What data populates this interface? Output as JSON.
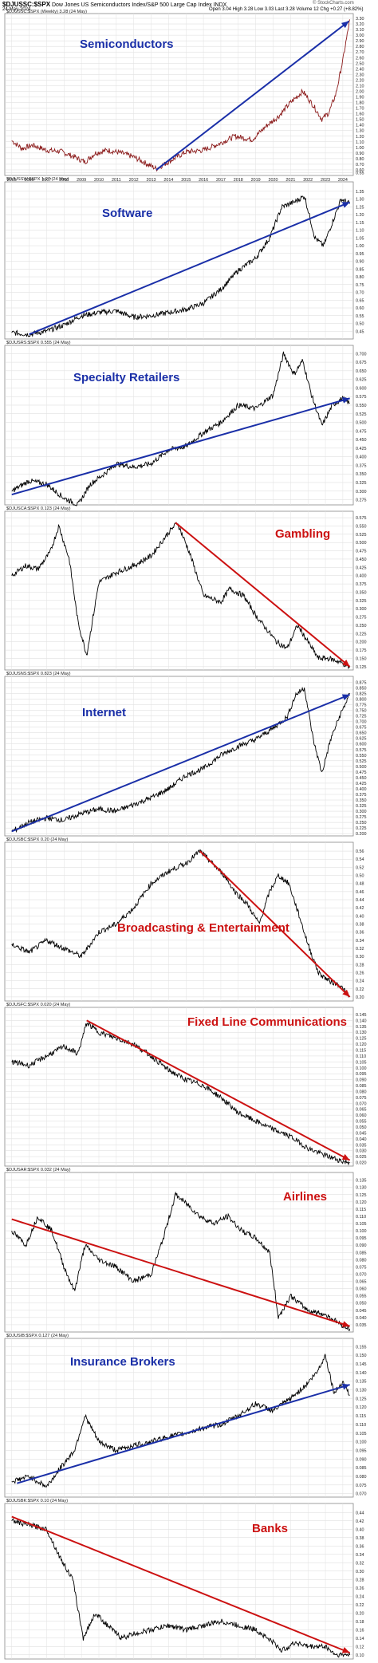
{
  "header": {
    "symbol": "$DJUSSC:$SPX",
    "description": "Dow Jones US Semiconductors Index/S&P 500 Large Cap Index",
    "exchange": "INDX",
    "date": "24-May-2024",
    "stats": "Open 3.04  High 3.28  Low 3.03  Last 3.28  Volume 12  Chg +0.27 (+8.82%)",
    "credit": "© StockCharts.com"
  },
  "chart_data": [
    {
      "type": "line",
      "id": "semis",
      "title": "Semiconductors",
      "title_color": "#1a2fa8",
      "panel_label": "$DJUSSC:$SPX (Weekly) 3.28 (24 May)",
      "line_color": "#8b1a1a",
      "x_ticks": [
        "2005",
        "2006",
        "2007",
        "2008",
        "2009",
        "2010",
        "2011",
        "2012",
        "2013",
        "2014",
        "2015",
        "2016",
        "2017",
        "2018",
        "2019",
        "2020",
        "2021",
        "2022",
        "2023",
        "2024"
      ],
      "y_ticks": [
        "3.30",
        "3.20",
        "3.10",
        "3.00",
        "2.90",
        "2.80",
        "2.70",
        "2.60",
        "2.50",
        "2.40",
        "2.30",
        "2.20",
        "2.10",
        "2.00",
        "1.90",
        "1.80",
        "1.70",
        "1.60",
        "1.50",
        "1.40",
        "1.30",
        "1.20",
        "1.10",
        "1.00",
        "0.90",
        "0.80",
        "0.70",
        "0.60",
        "0.55"
      ],
      "ylim": [
        0.5,
        3.3
      ],
      "series_x": [
        2005.0,
        2005.6,
        2006.2,
        2007.0,
        2007.8,
        2008.6,
        2009.2,
        2009.8,
        2010.5,
        2011.3,
        2012.0,
        2012.8,
        2013.3,
        2014.2,
        2015.0,
        2016.0,
        2017.0,
        2017.8,
        2018.8,
        2019.6,
        2020.3,
        2021.0,
        2021.7,
        2022.3,
        2022.8,
        2023.2,
        2023.6,
        2024.0,
        2024.4
      ],
      "series_y": [
        1.12,
        0.98,
        1.04,
        0.95,
        0.93,
        0.83,
        0.74,
        0.9,
        0.95,
        0.9,
        0.83,
        0.7,
        0.62,
        0.78,
        0.92,
        0.95,
        1.08,
        1.2,
        1.14,
        1.38,
        1.55,
        1.8,
        2.0,
        1.75,
        1.5,
        1.62,
        1.95,
        2.55,
        3.28
      ],
      "trend_color": "#1a2fa8",
      "trend": [
        [
          2013.3,
          0.6
        ],
        [
          2024.35,
          3.25
        ]
      ]
    },
    {
      "type": "line",
      "id": "software",
      "title": "Software",
      "title_color": "#1a2fa8",
      "panel_label": "$DJUSSW:$SPX 1.27 (24 May)",
      "line_color": "#000000",
      "y_ticks": [
        "1.35",
        "1.30",
        "1.25",
        "1.20",
        "1.15",
        "1.10",
        "1.05",
        "1.00",
        "0.95",
        "0.90",
        "0.85",
        "0.80",
        "0.75",
        "0.70",
        "0.65",
        "0.60",
        "0.55",
        "0.50",
        "0.45"
      ],
      "ylim": [
        0.4,
        1.38
      ],
      "series_x": [
        2005.0,
        2006.0,
        2007.0,
        2008.0,
        2009.0,
        2010.0,
        2011.0,
        2012.0,
        2013.0,
        2014.0,
        2015.0,
        2016.0,
        2017.0,
        2018.0,
        2019.0,
        2019.8,
        2020.5,
        2021.2,
        2021.8,
        2022.4,
        2022.9,
        2023.4,
        2023.9,
        2024.4
      ],
      "series_y": [
        0.44,
        0.43,
        0.45,
        0.49,
        0.55,
        0.57,
        0.58,
        0.54,
        0.55,
        0.57,
        0.59,
        0.63,
        0.72,
        0.84,
        0.92,
        1.05,
        1.25,
        1.28,
        1.32,
        1.05,
        1.0,
        1.15,
        1.3,
        1.27
      ],
      "trend_color": "#1a2fa8",
      "trend": [
        [
          2006.0,
          0.43
        ],
        [
          2024.4,
          1.28
        ]
      ]
    },
    {
      "type": "line",
      "id": "specialty",
      "title": "Specialty Retailers",
      "title_color": "#1a2fa8",
      "panel_label": "$DJUSRS:$SPX 0.555 (24 May)",
      "line_color": "#000000",
      "y_ticks": [
        "0.700",
        "0.675",
        "0.650",
        "0.625",
        "0.600",
        "0.575",
        "0.550",
        "0.525",
        "0.500",
        "0.475",
        "0.450",
        "0.425",
        "0.400",
        "0.375",
        "0.350",
        "0.325",
        "0.300",
        "0.275"
      ],
      "ylim": [
        0.26,
        0.71
      ],
      "series_x": [
        2005.0,
        2006.0,
        2007.0,
        2008.0,
        2008.8,
        2009.5,
        2010.3,
        2011.0,
        2012.0,
        2013.0,
        2014.0,
        2015.0,
        2016.0,
        2017.0,
        2018.0,
        2019.0,
        2020.0,
        2020.6,
        2021.2,
        2021.7,
        2022.2,
        2022.8,
        2023.4,
        2024.0,
        2024.4
      ],
      "series_y": [
        0.3,
        0.33,
        0.32,
        0.28,
        0.26,
        0.32,
        0.35,
        0.38,
        0.37,
        0.38,
        0.42,
        0.43,
        0.47,
        0.5,
        0.55,
        0.54,
        0.58,
        0.7,
        0.64,
        0.68,
        0.58,
        0.49,
        0.55,
        0.57,
        0.555
      ],
      "trend_color": "#1a2fa8",
      "trend": [
        [
          2005.0,
          0.29
        ],
        [
          2024.4,
          0.57
        ]
      ]
    },
    {
      "type": "line",
      "id": "gambling",
      "title": "Gambling",
      "title_color": "#cc1111",
      "panel_label": "$DJUSCA:$SPX 0.123 (24 May)",
      "line_color": "#000000",
      "y_ticks": [
        "0.575",
        "0.550",
        "0.525",
        "0.500",
        "0.475",
        "0.450",
        "0.425",
        "0.400",
        "0.375",
        "0.350",
        "0.325",
        "0.300",
        "0.275",
        "0.250",
        "0.225",
        "0.200",
        "0.175",
        "0.150",
        "0.125"
      ],
      "ylim": [
        0.115,
        0.58
      ],
      "series_x": [
        2005.0,
        2005.8,
        2006.5,
        2007.2,
        2007.7,
        2008.3,
        2008.8,
        2009.3,
        2010.0,
        2011.0,
        2012.0,
        2013.0,
        2014.0,
        2014.5,
        2015.2,
        2016.0,
        2017.0,
        2017.5,
        2018.3,
        2019.0,
        2019.6,
        2020.2,
        2020.8,
        2021.4,
        2022.0,
        2022.6,
        2023.2,
        2023.8,
        2024.4
      ],
      "series_y": [
        0.4,
        0.43,
        0.42,
        0.47,
        0.55,
        0.45,
        0.26,
        0.16,
        0.38,
        0.41,
        0.43,
        0.46,
        0.53,
        0.56,
        0.47,
        0.34,
        0.32,
        0.36,
        0.34,
        0.28,
        0.24,
        0.2,
        0.18,
        0.25,
        0.2,
        0.15,
        0.15,
        0.14,
        0.123
      ],
      "trend_color": "#cc1111",
      "trend": [
        [
          2014.4,
          0.56
        ],
        [
          2024.4,
          0.125
        ]
      ]
    },
    {
      "type": "line",
      "id": "internet",
      "title": "Internet",
      "title_color": "#1a2fa8",
      "panel_label": "$DJUSNS:$SPX 0.823 (24 May)",
      "line_color": "#000000",
      "y_ticks": [
        "0.875",
        "0.850",
        "0.825",
        "0.800",
        "0.775",
        "0.750",
        "0.725",
        "0.700",
        "0.675",
        "0.650",
        "0.625",
        "0.600",
        "0.575",
        "0.550",
        "0.525",
        "0.500",
        "0.475",
        "0.450",
        "0.425",
        "0.400",
        "0.375",
        "0.350",
        "0.325",
        "0.300",
        "0.275",
        "0.250",
        "0.225",
        "0.200"
      ],
      "ylim": [
        0.19,
        0.88
      ],
      "series_x": [
        2005.0,
        2006.0,
        2007.0,
        2008.0,
        2009.0,
        2010.0,
        2011.0,
        2012.0,
        2013.0,
        2014.0,
        2015.0,
        2016.0,
        2017.0,
        2018.0,
        2019.0,
        2020.0,
        2020.8,
        2021.3,
        2021.8,
        2022.3,
        2022.8,
        2023.3,
        2023.8,
        2024.4
      ],
      "series_y": [
        0.21,
        0.25,
        0.27,
        0.26,
        0.29,
        0.31,
        0.3,
        0.33,
        0.36,
        0.4,
        0.46,
        0.49,
        0.55,
        0.59,
        0.62,
        0.67,
        0.72,
        0.82,
        0.85,
        0.62,
        0.47,
        0.62,
        0.72,
        0.823
      ],
      "trend_color": "#1a2fa8",
      "trend": [
        [
          2005.0,
          0.21
        ],
        [
          2024.4,
          0.82
        ]
      ]
    },
    {
      "type": "line",
      "id": "broadcasting",
      "title": "Broadcasting & Entertainment",
      "title_color": "#cc1111",
      "panel_label": "$DJUSBC:$SPX 0.20 (24 May)",
      "line_color": "#000000",
      "y_ticks": [
        "0.56",
        "0.54",
        "0.52",
        "0.50",
        "0.48",
        "0.46",
        "0.44",
        "0.42",
        "0.40",
        "0.38",
        "0.36",
        "0.34",
        "0.32",
        "0.30",
        "0.28",
        "0.26",
        "0.24",
        "0.22",
        "0.20"
      ],
      "ylim": [
        0.19,
        0.57
      ],
      "series_x": [
        2005.0,
        2006.0,
        2007.0,
        2008.0,
        2009.0,
        2010.0,
        2011.0,
        2012.0,
        2013.0,
        2014.0,
        2015.0,
        2015.8,
        2016.5,
        2017.2,
        2017.8,
        2018.5,
        2019.2,
        2019.8,
        2020.3,
        2020.9,
        2021.5,
        2022.0,
        2022.6,
        2023.2,
        2023.8,
        2024.4
      ],
      "series_y": [
        0.33,
        0.31,
        0.34,
        0.32,
        0.3,
        0.36,
        0.38,
        0.42,
        0.48,
        0.51,
        0.53,
        0.56,
        0.53,
        0.5,
        0.46,
        0.43,
        0.38,
        0.46,
        0.5,
        0.48,
        0.4,
        0.33,
        0.26,
        0.24,
        0.23,
        0.2
      ],
      "trend_color": "#cc1111",
      "trend": [
        [
          2015.8,
          0.56
        ],
        [
          2024.4,
          0.2
        ]
      ]
    },
    {
      "type": "line",
      "id": "fixedline",
      "title": "Fixed Line Communications",
      "title_color": "#cc1111",
      "panel_label": "$DJUSFC:$SPX 0.020 (24 May)",
      "line_color": "#000000",
      "y_ticks": [
        "0.145",
        "0.140",
        "0.135",
        "0.130",
        "0.125",
        "0.120",
        "0.115",
        "0.110",
        "0.105",
        "0.100",
        "0.095",
        "0.090",
        "0.085",
        "0.080",
        "0.075",
        "0.070",
        "0.065",
        "0.060",
        "0.055",
        "0.050",
        "0.045",
        "0.040",
        "0.035",
        "0.030",
        "0.025",
        "0.020"
      ],
      "ylim": [
        0.017,
        0.147
      ],
      "series_x": [
        2005.0,
        2006.0,
        2007.0,
        2008.0,
        2008.8,
        2009.3,
        2010.0,
        2011.0,
        2012.0,
        2013.0,
        2014.0,
        2015.0,
        2016.0,
        2017.0,
        2018.0,
        2019.0,
        2020.0,
        2021.0,
        2022.0,
        2023.0,
        2024.0,
        2024.4
      ],
      "series_y": [
        0.105,
        0.102,
        0.11,
        0.118,
        0.112,
        0.138,
        0.13,
        0.125,
        0.12,
        0.11,
        0.098,
        0.09,
        0.085,
        0.075,
        0.062,
        0.055,
        0.048,
        0.042,
        0.032,
        0.026,
        0.021,
        0.02
      ],
      "trend_color": "#cc1111",
      "trend": [
        [
          2009.3,
          0.14
        ],
        [
          2024.4,
          0.022
        ]
      ]
    },
    {
      "type": "line",
      "id": "airlines",
      "title": "Airlines",
      "title_color": "#cc1111",
      "panel_label": "$DJUSAR:$SPX 0.032 (24 May)",
      "line_color": "#000000",
      "y_ticks": [
        "0.135",
        "0.130",
        "0.125",
        "0.120",
        "0.115",
        "0.110",
        "0.105",
        "0.100",
        "0.095",
        "0.090",
        "0.085",
        "0.080",
        "0.075",
        "0.070",
        "0.065",
        "0.060",
        "0.055",
        "0.050",
        "0.045",
        "0.040",
        "0.035"
      ],
      "ylim": [
        0.03,
        0.137
      ],
      "series_x": [
        2005.0,
        2005.8,
        2006.5,
        2007.3,
        2008.0,
        2008.6,
        2009.2,
        2010.0,
        2011.0,
        2012.0,
        2013.0,
        2013.7,
        2014.4,
        2015.1,
        2015.8,
        2016.6,
        2017.4,
        2018.2,
        2019.0,
        2019.8,
        2020.3,
        2021.0,
        2022.0,
        2023.0,
        2023.8,
        2024.4
      ],
      "series_y": [
        0.1,
        0.09,
        0.11,
        0.1,
        0.075,
        0.058,
        0.09,
        0.08,
        0.075,
        0.065,
        0.07,
        0.095,
        0.125,
        0.118,
        0.11,
        0.105,
        0.11,
        0.1,
        0.095,
        0.085,
        0.04,
        0.055,
        0.045,
        0.042,
        0.036,
        0.032
      ],
      "trend_color": "#cc1111",
      "trend": [
        [
          2005.0,
          0.108
        ],
        [
          2024.4,
          0.034
        ]
      ]
    },
    {
      "type": "line",
      "id": "insurance",
      "title": "Insurance Brokers",
      "title_color": "#1a2fa8",
      "panel_label": "$DJUSIB:$SPX 0.127 (24 May)",
      "line_color": "#000000",
      "y_ticks": [
        "0.155",
        "0.150",
        "0.145",
        "0.140",
        "0.135",
        "0.130",
        "0.125",
        "0.120",
        "0.115",
        "0.110",
        "0.105",
        "0.100",
        "0.095",
        "0.090",
        "0.085",
        "0.080",
        "0.075",
        "0.070"
      ],
      "ylim": [
        0.068,
        0.157
      ],
      "series_x": [
        2005.0,
        2006.0,
        2007.0,
        2007.8,
        2008.6,
        2009.2,
        2010.0,
        2011.0,
        2012.0,
        2013.0,
        2014.0,
        2015.0,
        2016.0,
        2017.0,
        2018.0,
        2019.0,
        2020.0,
        2021.0,
        2021.8,
        2022.5,
        2023.0,
        2023.5,
        2024.0,
        2024.4
      ],
      "series_y": [
        0.077,
        0.08,
        0.074,
        0.085,
        0.095,
        0.115,
        0.1,
        0.095,
        0.098,
        0.1,
        0.103,
        0.105,
        0.108,
        0.11,
        0.115,
        0.122,
        0.118,
        0.125,
        0.132,
        0.14,
        0.15,
        0.128,
        0.135,
        0.127
      ],
      "trend_color": "#1a2fa8",
      "trend": [
        [
          2005.3,
          0.076
        ],
        [
          2024.4,
          0.133
        ]
      ]
    },
    {
      "type": "line",
      "id": "banks",
      "title": "Banks",
      "title_color": "#cc1111",
      "panel_label": "$DJUSBK:$SPX 0.10 (24 May)",
      "line_color": "#000000",
      "y_ticks": [
        "0.44",
        "0.42",
        "0.40",
        "0.38",
        "0.36",
        "0.34",
        "0.32",
        "0.30",
        "0.28",
        "0.26",
        "0.24",
        "0.22",
        "0.20",
        "0.18",
        "0.16",
        "0.14",
        "0.12",
        "0.10"
      ],
      "ylim": [
        0.09,
        0.45
      ],
      "series_x": [
        2005.0,
        2006.0,
        2007.0,
        2007.8,
        2008.5,
        2009.1,
        2009.8,
        2010.5,
        2011.3,
        2012.0,
        2013.0,
        2014.0,
        2015.0,
        2016.0,
        2017.0,
        2018.0,
        2019.0,
        2020.0,
        2020.5,
        2021.3,
        2022.0,
        2023.0,
        2023.6,
        2024.4
      ],
      "series_y": [
        0.42,
        0.41,
        0.4,
        0.33,
        0.28,
        0.14,
        0.2,
        0.17,
        0.14,
        0.15,
        0.16,
        0.17,
        0.16,
        0.17,
        0.18,
        0.17,
        0.16,
        0.13,
        0.11,
        0.13,
        0.12,
        0.12,
        0.1,
        0.1
      ],
      "trend_color": "#cc1111",
      "trend": [
        [
          2005.0,
          0.43
        ],
        [
          2024.4,
          0.105
        ]
      ]
    }
  ]
}
